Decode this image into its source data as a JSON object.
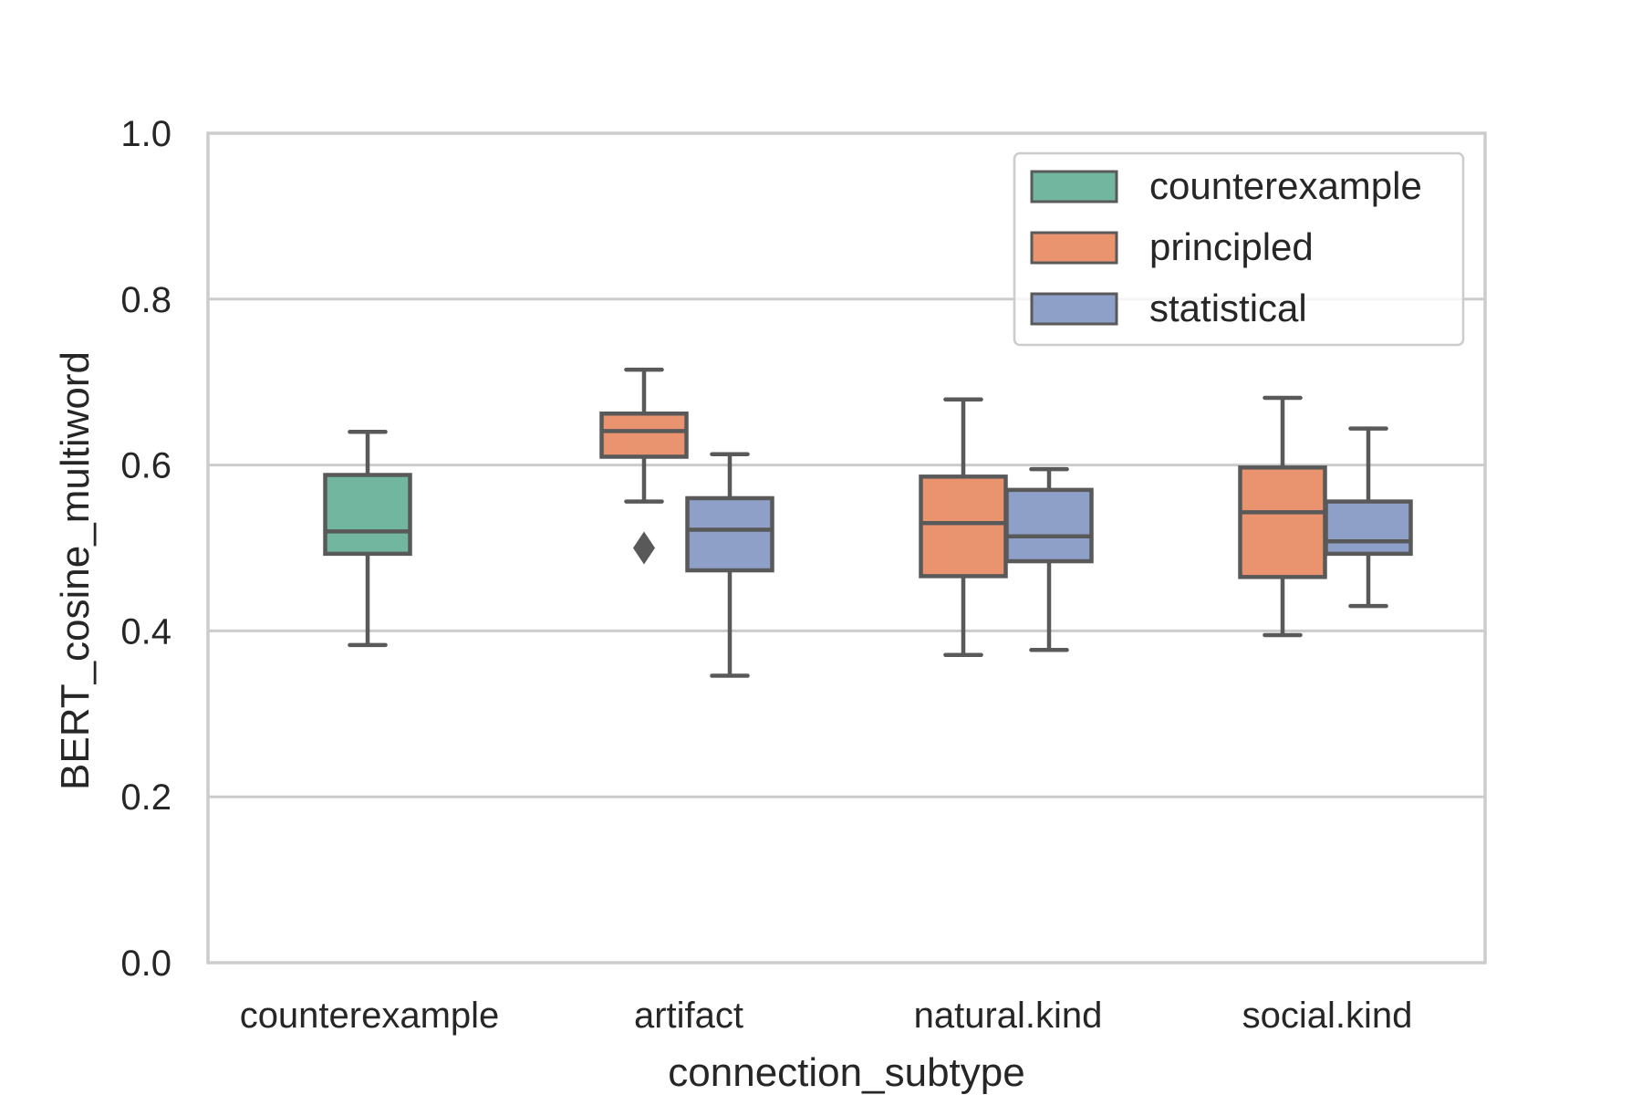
{
  "chart_data": {
    "type": "boxplot",
    "title": "",
    "xlabel": "connection_subtype",
    "ylabel": "BERT_cosine_multiword",
    "ylim": [
      0.0,
      1.0
    ],
    "yticks": [
      "0.0",
      "0.2",
      "0.4",
      "0.6",
      "0.8",
      "1.0"
    ],
    "categories": [
      "counterexample",
      "artifact",
      "natural.kind",
      "social.kind"
    ],
    "grid": "horizontal",
    "legend_position": "top-right",
    "series": [
      {
        "name": "counterexample",
        "color": "#72b6a0",
        "boxes": [
          {
            "category": "counterexample",
            "whisker_low": 0.383,
            "q1": 0.493,
            "median": 0.52,
            "q3": 0.588,
            "whisker_high": 0.64,
            "outliers": []
          }
        ]
      },
      {
        "name": "principled",
        "color": "#e9946f",
        "boxes": [
          {
            "category": "artifact",
            "whisker_low": 0.556,
            "q1": 0.61,
            "median": 0.641,
            "q3": 0.662,
            "whisker_high": 0.715,
            "outliers": [
              0.5
            ]
          },
          {
            "category": "natural.kind",
            "whisker_low": 0.371,
            "q1": 0.466,
            "median": 0.53,
            "q3": 0.586,
            "whisker_high": 0.679,
            "outliers": []
          },
          {
            "category": "social.kind",
            "whisker_low": 0.395,
            "q1": 0.465,
            "median": 0.543,
            "q3": 0.597,
            "whisker_high": 0.681,
            "outliers": []
          }
        ]
      },
      {
        "name": "statistical",
        "color": "#8fa0c8",
        "boxes": [
          {
            "category": "artifact",
            "whisker_low": 0.346,
            "q1": 0.473,
            "median": 0.522,
            "q3": 0.56,
            "whisker_high": 0.613,
            "outliers": []
          },
          {
            "category": "natural.kind",
            "whisker_low": 0.377,
            "q1": 0.484,
            "median": 0.514,
            "q3": 0.57,
            "whisker_high": 0.595,
            "outliers": []
          },
          {
            "category": "social.kind",
            "whisker_low": 0.43,
            "q1": 0.493,
            "median": 0.508,
            "q3": 0.556,
            "whisker_high": 0.644,
            "outliers": []
          }
        ]
      }
    ]
  },
  "style": {
    "box_edge_color": "#595959",
    "grid_color": "#cccccc",
    "frame_color": "#cccccc"
  }
}
